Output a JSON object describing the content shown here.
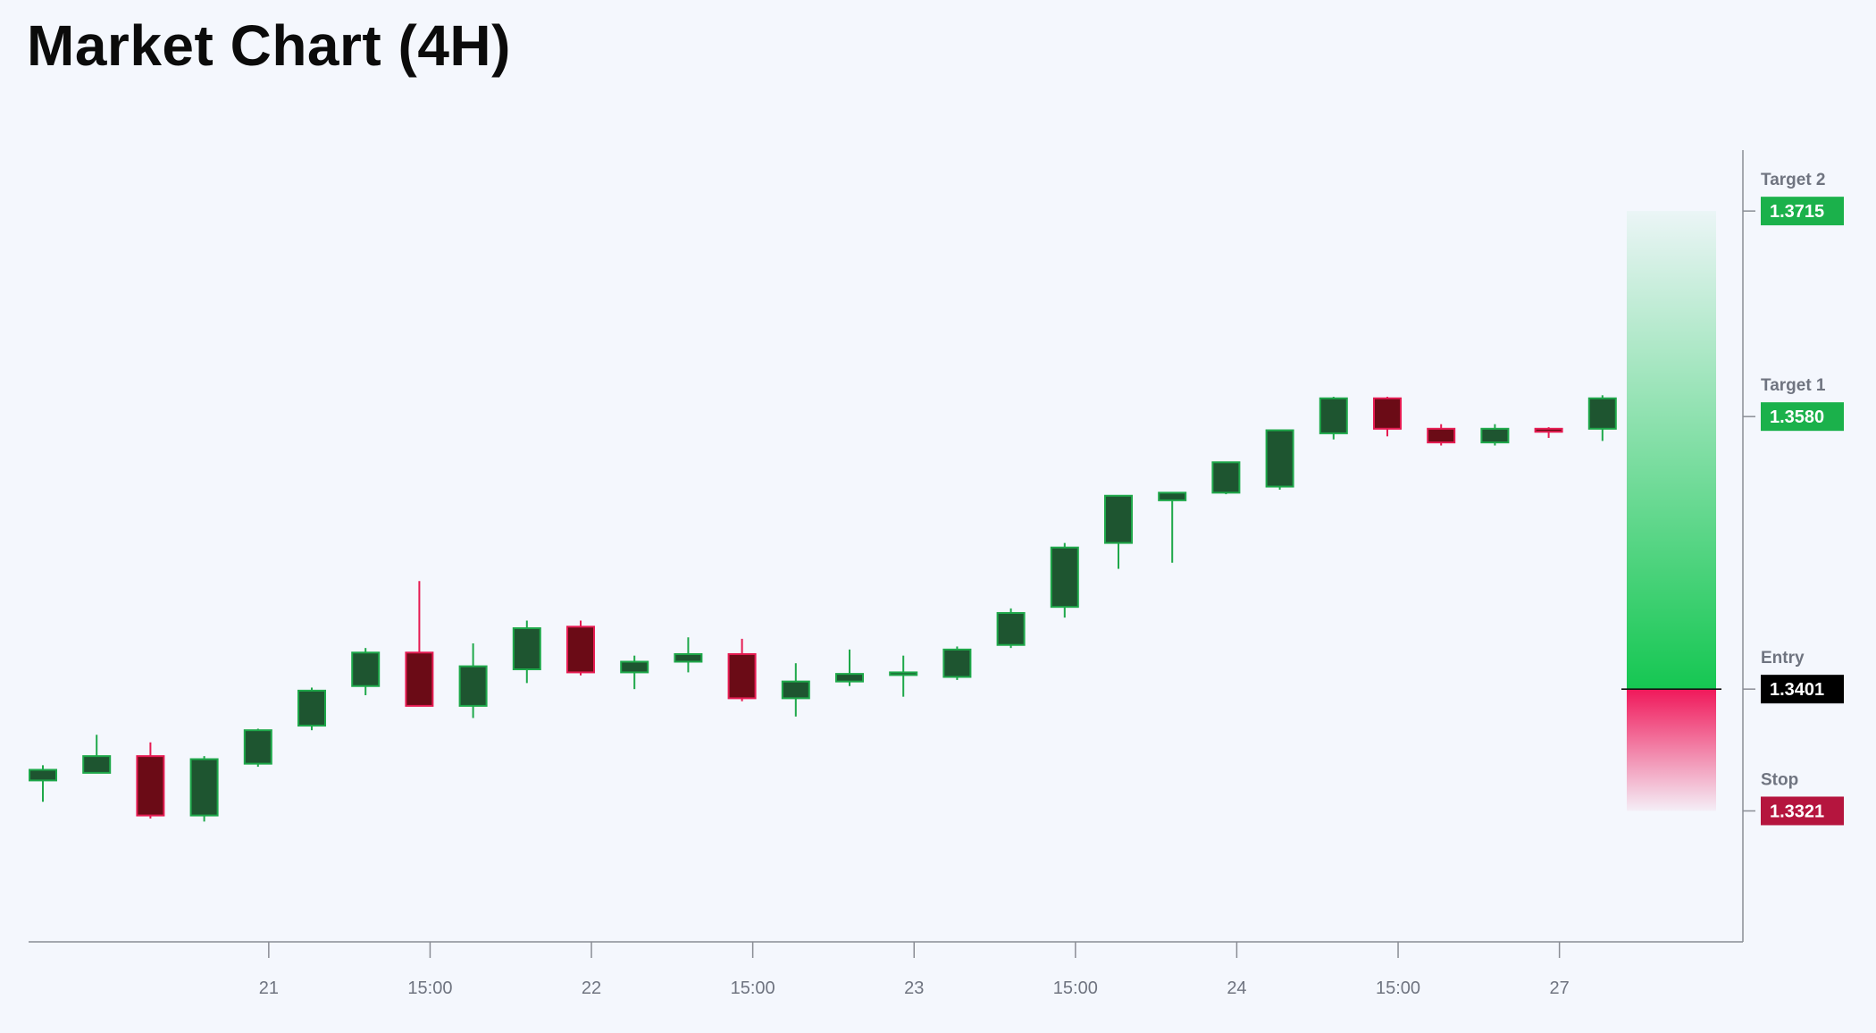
{
  "page": {
    "title": "Market Chart (4H)"
  },
  "chart_data": {
    "type": "candlestick",
    "title": "Market Chart (4H)",
    "timeframe": "4H",
    "x_ticks": [
      {
        "label": "21",
        "index": 4.2
      },
      {
        "label": "15:00",
        "index": 7.2
      },
      {
        "label": "22",
        "index": 10.2
      },
      {
        "label": "15:00",
        "index": 13.2
      },
      {
        "label": "23",
        "index": 16.2
      },
      {
        "label": "15:00",
        "index": 19.2
      },
      {
        "label": "24",
        "index": 22.2
      },
      {
        "label": "15:00",
        "index": 25.2
      },
      {
        "label": "27",
        "index": 28.2
      }
    ],
    "ylim": [
      1.3235,
      1.3755
    ],
    "candles": [
      {
        "o": 1.3341,
        "h": 1.3351,
        "l": 1.3327,
        "c": 1.3348
      },
      {
        "o": 1.3346,
        "h": 1.3371,
        "l": 1.3346,
        "c": 1.3357
      },
      {
        "o": 1.3357,
        "h": 1.3366,
        "l": 1.3316,
        "c": 1.3318
      },
      {
        "o": 1.3318,
        "h": 1.3357,
        "l": 1.3314,
        "c": 1.3355
      },
      {
        "o": 1.3352,
        "h": 1.3375,
        "l": 1.335,
        "c": 1.3374
      },
      {
        "o": 1.3377,
        "h": 1.3402,
        "l": 1.3374,
        "c": 1.34
      },
      {
        "o": 1.3403,
        "h": 1.3428,
        "l": 1.3397,
        "c": 1.3425
      },
      {
        "o": 1.3425,
        "h": 1.3472,
        "l": 1.3391,
        "c": 1.339
      },
      {
        "o": 1.339,
        "h": 1.3431,
        "l": 1.3382,
        "c": 1.3416
      },
      {
        "o": 1.3414,
        "h": 1.3446,
        "l": 1.3405,
        "c": 1.3441
      },
      {
        "o": 1.3442,
        "h": 1.3446,
        "l": 1.341,
        "c": 1.3412
      },
      {
        "o": 1.3412,
        "h": 1.3423,
        "l": 1.3401,
        "c": 1.3419
      },
      {
        "o": 1.3419,
        "h": 1.3435,
        "l": 1.3412,
        "c": 1.3424
      },
      {
        "o": 1.3424,
        "h": 1.3434,
        "l": 1.3393,
        "c": 1.3395
      },
      {
        "o": 1.3395,
        "h": 1.3418,
        "l": 1.3383,
        "c": 1.3406
      },
      {
        "o": 1.3406,
        "h": 1.3427,
        "l": 1.3403,
        "c": 1.3411
      },
      {
        "o": 1.3411,
        "h": 1.3423,
        "l": 1.3396,
        "c": 1.3412
      },
      {
        "o": 1.3409,
        "h": 1.3429,
        "l": 1.3407,
        "c": 1.3427
      },
      {
        "o": 1.343,
        "h": 1.3454,
        "l": 1.3428,
        "c": 1.3451
      },
      {
        "o": 1.3455,
        "h": 1.3497,
        "l": 1.3448,
        "c": 1.3494
      },
      {
        "o": 1.3497,
        "h": 1.3526,
        "l": 1.348,
        "c": 1.3528
      },
      {
        "o": 1.3525,
        "h": 1.3529,
        "l": 1.3484,
        "c": 1.353
      },
      {
        "o": 1.353,
        "h": 1.3549,
        "l": 1.3529,
        "c": 1.355
      },
      {
        "o": 1.3534,
        "h": 1.3571,
        "l": 1.3532,
        "c": 1.3571
      },
      {
        "o": 1.3569,
        "h": 1.3593,
        "l": 1.3565,
        "c": 1.3592
      },
      {
        "o": 1.3592,
        "h": 1.3593,
        "l": 1.3567,
        "c": 1.3572
      },
      {
        "o": 1.3572,
        "h": 1.3575,
        "l": 1.3561,
        "c": 1.3563
      },
      {
        "o": 1.3563,
        "h": 1.3575,
        "l": 1.3561,
        "c": 1.3572
      },
      {
        "o": 1.3572,
        "h": 1.3573,
        "l": 1.3566,
        "c": 1.357
      },
      {
        "o": 1.3572,
        "h": 1.3594,
        "l": 1.3564,
        "c": 1.3592
      }
    ],
    "levels": [
      {
        "name": "Target 2",
        "value": "1.3715",
        "price": 1.3715,
        "color": "#1bb14b"
      },
      {
        "name": "Target 1",
        "value": "1.3580",
        "price": 1.358,
        "color": "#1bb14b"
      },
      {
        "name": "Entry",
        "value": "1.3401",
        "price": 1.3401,
        "color": "#000000"
      },
      {
        "name": "Stop",
        "value": "1.3321",
        "price": 1.3321,
        "color": "#b5153e"
      }
    ],
    "colors": {
      "bull_body": "#1e5530",
      "bull_border": "#1ea84a",
      "bear_body": "#6b0b16",
      "bear_border": "#e61b52",
      "profit_zone": "#15c752",
      "loss_zone": "#f0185a",
      "axis": "#8a8d95",
      "background": "#f4f7fd"
    },
    "grid": false,
    "legend": "none"
  }
}
